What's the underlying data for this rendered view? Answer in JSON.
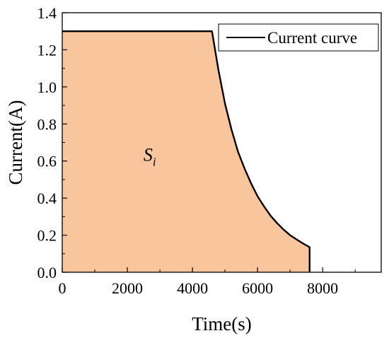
{
  "chart_data": {
    "type": "area",
    "xlabel": "Time(s)",
    "ylabel": "Current(A)",
    "xlim": [
      0,
      9800
    ],
    "ylim": [
      0,
      1.4
    ],
    "xticks": [
      0,
      2000,
      4000,
      6000,
      8000
    ],
    "yticks": [
      0.0,
      0.2,
      0.4,
      0.6,
      0.8,
      1.0,
      1.2,
      1.4
    ],
    "xtick_labels": [
      "0",
      "2000",
      "4000",
      "6000",
      "8000"
    ],
    "ytick_labels": [
      "0.0",
      "0.2",
      "0.4",
      "0.6",
      "0.8",
      "1.0",
      "1.2",
      "1.4"
    ],
    "grid": false,
    "legend_position": "top-right",
    "series": [
      {
        "name": "Current curve",
        "color": "#000000",
        "fill_color": "#F9C59D",
        "x": [
          0,
          4600,
          4800,
          5000,
          5200,
          5400,
          5600,
          5800,
          6000,
          6200,
          6400,
          6600,
          6800,
          7000,
          7200,
          7400,
          7600,
          7600
        ],
        "y": [
          1.3,
          1.3,
          1.09,
          0.91,
          0.77,
          0.65,
          0.56,
          0.48,
          0.41,
          0.355,
          0.305,
          0.265,
          0.23,
          0.2,
          0.177,
          0.155,
          0.135,
          0.0
        ]
      }
    ],
    "annotations": [
      {
        "text": "S",
        "subscript": "i",
        "x": 2800,
        "y": 0.6
      }
    ]
  }
}
